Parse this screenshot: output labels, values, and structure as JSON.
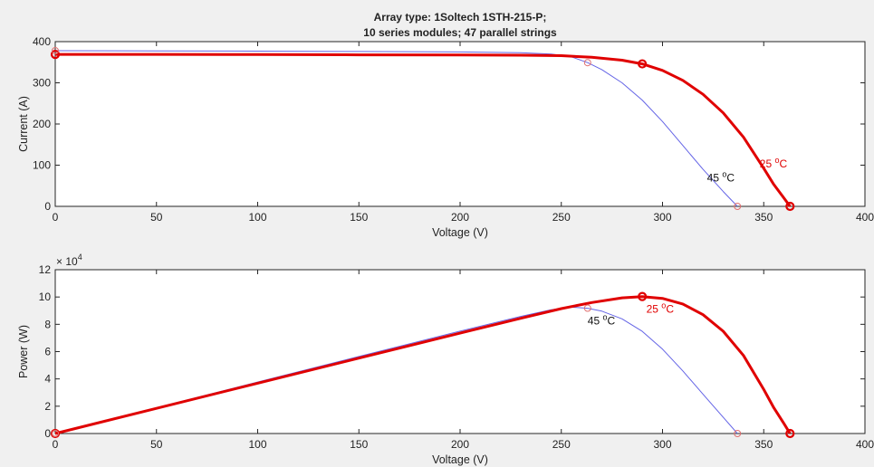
{
  "figure": {
    "title_line1": "Array type: 1Soltech 1STH-215-P;",
    "title_line2": "10 series modules; 47 parallel strings",
    "background": "#f0f0f0"
  },
  "colors": {
    "t25": "#e00000",
    "t45": "#6464e6",
    "axes_bg": "#ffffff",
    "axes_line": "#262626"
  },
  "chart_data": [
    {
      "type": "line",
      "xlabel": "Voltage (V)",
      "ylabel": "Current (A)",
      "xlim": [
        0,
        400
      ],
      "ylim": [
        0,
        400
      ],
      "xticks": [
        0,
        50,
        100,
        150,
        200,
        250,
        300,
        350,
        400
      ],
      "yticks": [
        0,
        100,
        200,
        300,
        400
      ],
      "grid": false,
      "series": [
        {
          "name": "25 °C",
          "color": "#e00000",
          "x": [
            0,
            50,
            100,
            150,
            200,
            230,
            250,
            265,
            280,
            290,
            300,
            310,
            320,
            330,
            340,
            350,
            355,
            360,
            363
          ],
          "y": [
            369,
            369,
            368.5,
            368,
            367.5,
            367,
            366,
            362,
            355,
            346,
            330,
            306,
            272,
            227,
            168,
            92,
            53,
            20,
            0
          ]
        },
        {
          "name": "45 °C",
          "color": "#6464e6",
          "x": [
            0,
            50,
            100,
            150,
            200,
            230,
            245,
            255,
            263,
            270,
            280,
            290,
            300,
            310,
            320,
            330,
            337
          ],
          "y": [
            378,
            377.5,
            377,
            376,
            375,
            373,
            370,
            363,
            349,
            332,
            300,
            258,
            206,
            148,
            90,
            36,
            0
          ]
        }
      ],
      "markers": [
        {
          "series": "25 °C",
          "points": [
            [
              0,
              369
            ],
            [
              290,
              346
            ],
            [
              363,
              0
            ]
          ]
        },
        {
          "series": "45 °C",
          "points": [
            [
              0,
              378
            ],
            [
              263,
              349
            ],
            [
              337,
              0
            ]
          ]
        }
      ],
      "annotations": [
        {
          "label": "25",
          "unit": "oC",
          "series": "25 °C",
          "at": [
            348,
            95
          ]
        },
        {
          "label": "45",
          "unit": "oC",
          "series": "45 °C",
          "at": [
            322,
            60
          ]
        }
      ]
    },
    {
      "type": "line",
      "xlabel": "Voltage (V)",
      "ylabel": "Power (W)",
      "exponent_label": "× 10",
      "exponent_power": "4",
      "xlim": [
        0,
        400
      ],
      "ylim": [
        0,
        120000
      ],
      "xticks": [
        0,
        50,
        100,
        150,
        200,
        250,
        300,
        350,
        400
      ],
      "yticks": [
        0,
        20000,
        40000,
        60000,
        80000,
        100000,
        120000
      ],
      "ytick_labels": [
        "0",
        "2",
        "4",
        "6",
        "8",
        "10",
        "12"
      ],
      "grid": false,
      "series": [
        {
          "name": "25 °C",
          "color": "#e00000",
          "x": [
            0,
            50,
            100,
            150,
            200,
            230,
            250,
            265,
            280,
            290,
            300,
            310,
            320,
            330,
            340,
            350,
            355,
            360,
            363
          ],
          "y": [
            0,
            18450,
            36850,
            55200,
            73500,
            84410,
            91500,
            95930,
            99400,
            100340,
            99000,
            94860,
            87040,
            74910,
            57120,
            32200,
            18815,
            7200,
            0
          ]
        },
        {
          "name": "45 °C",
          "color": "#6464e6",
          "x": [
            0,
            50,
            100,
            150,
            200,
            230,
            245,
            255,
            263,
            270,
            280,
            290,
            300,
            310,
            320,
            330,
            337
          ],
          "y": [
            0,
            18875,
            37700,
            56400,
            75000,
            85790,
            90650,
            92565,
            91790,
            89640,
            84000,
            74820,
            61800,
            45880,
            28800,
            11880,
            0
          ]
        }
      ],
      "markers": [
        {
          "series": "25 °C",
          "points": [
            [
              0,
              0
            ],
            [
              290,
              100340
            ],
            [
              363,
              0
            ]
          ]
        },
        {
          "series": "45 °C",
          "points": [
            [
              0,
              0
            ],
            [
              263,
              91790
            ],
            [
              337,
              0
            ]
          ]
        }
      ],
      "annotations": [
        {
          "label": "25",
          "unit": "oC",
          "series": "25 °C",
          "at": [
            292,
            88500
          ]
        },
        {
          "label": "45",
          "unit": "oC",
          "series": "45 °C",
          "at": [
            263,
            80000
          ]
        }
      ]
    }
  ]
}
